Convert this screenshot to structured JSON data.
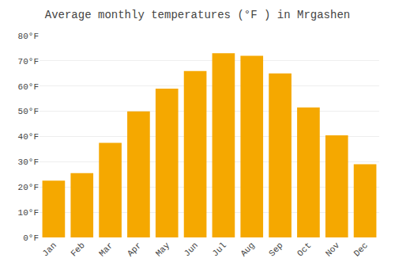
{
  "chart_data": {
    "type": "bar",
    "title": "Average monthly temperatures (°F ) in Mrgashen",
    "categories": [
      "Jan",
      "Feb",
      "Mar",
      "Apr",
      "May",
      "Jun",
      "Jul",
      "Aug",
      "Sep",
      "Oct",
      "Nov",
      "Dec"
    ],
    "values": [
      22.5,
      25.5,
      37.5,
      50.0,
      59.0,
      66.0,
      73.0,
      72.0,
      65.0,
      51.5,
      40.5,
      29.0
    ],
    "color": "#F5A800",
    "ylim": [
      0,
      80
    ],
    "yticks": [
      {
        "value": 0,
        "label": "0°F"
      },
      {
        "value": 10,
        "label": "10°F"
      },
      {
        "value": 20,
        "label": "20°F"
      },
      {
        "value": 30,
        "label": "30°F"
      },
      {
        "value": 40,
        "label": "40°F"
      },
      {
        "value": 50,
        "label": "50°F"
      },
      {
        "value": 60,
        "label": "60°F"
      },
      {
        "value": 70,
        "label": "70°F"
      },
      {
        "value": 80,
        "label": "80°F"
      }
    ],
    "grid": true
  }
}
